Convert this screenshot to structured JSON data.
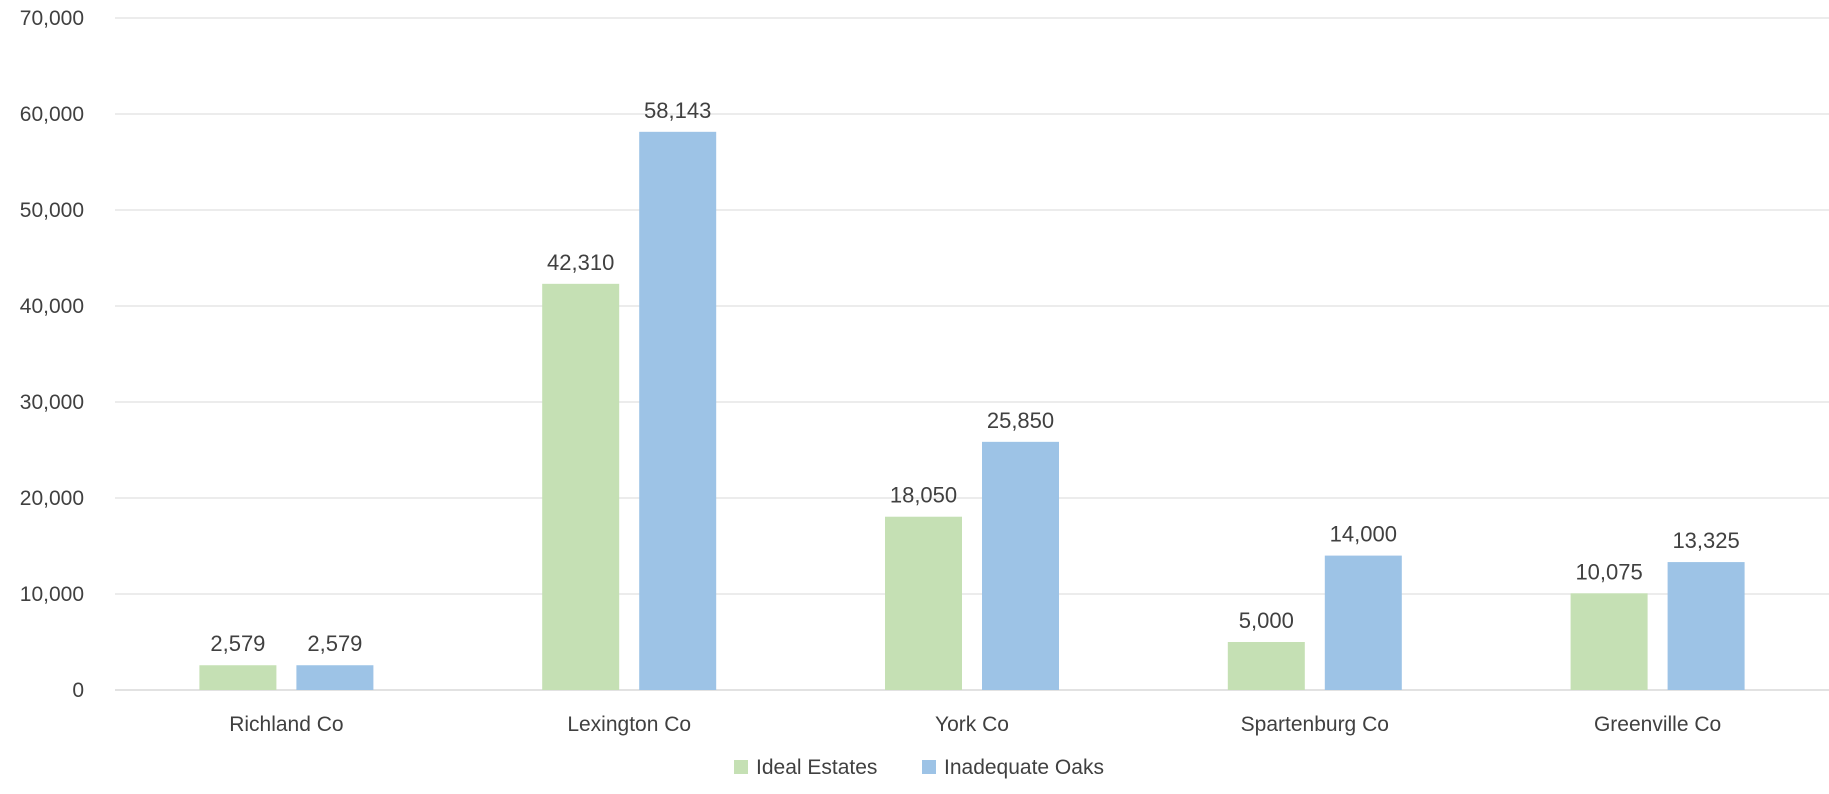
{
  "chart_data": {
    "type": "bar",
    "title": "",
    "xlabel": "",
    "ylabel": "",
    "categories": [
      "Richland Co",
      "Lexington Co",
      "York Co",
      "Spartenburg Co",
      "Greenville Co"
    ],
    "series": [
      {
        "name": "Ideal Estates",
        "color": "#c5e0b4",
        "values": [
          2579,
          42310,
          18050,
          5000,
          10075
        ]
      },
      {
        "name": "Inadequate Oaks",
        "color": "#9dc3e6",
        "values": [
          2579,
          58143,
          25850,
          14000,
          13325
        ]
      }
    ],
    "ylim": [
      0,
      70000
    ],
    "yticks": [
      0,
      10000,
      20000,
      30000,
      40000,
      50000,
      60000,
      70000
    ],
    "ytick_labels": [
      "0",
      "10,000",
      "20,000",
      "30,000",
      "40,000",
      "50,000",
      "60,000",
      "70,000"
    ],
    "data_labels": [
      [
        "2,579",
        "42,310",
        "18,050",
        "5,000",
        "10,075"
      ],
      [
        "2,579",
        "58,143",
        "25,850",
        "14,000",
        "13,325"
      ]
    ],
    "grid": true,
    "legend_position": "bottom",
    "gridline_color": "#d9d9d9"
  }
}
